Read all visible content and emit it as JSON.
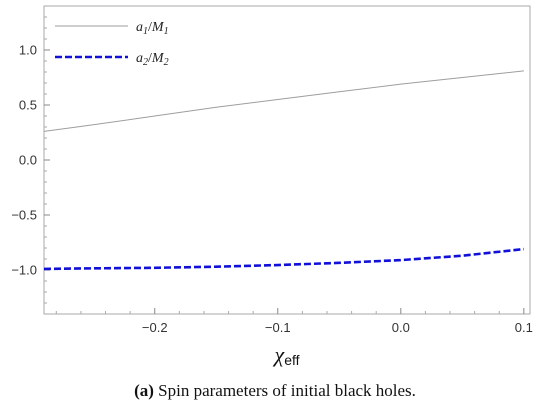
{
  "chart_data": {
    "type": "line",
    "x_axis": {
      "range": [
        -0.29,
        0.105
      ],
      "ticks": [
        -0.2,
        -0.1,
        0.0,
        0.1
      ],
      "tick_labels": [
        "−0.2",
        "−0.1",
        "0.0",
        "0.1"
      ],
      "label_main": "χ",
      "label_sub": "eff"
    },
    "y_axis": {
      "range": [
        -1.4,
        1.4
      ],
      "ticks": [
        -1.0,
        -0.5,
        0.0,
        0.5,
        1.0
      ],
      "tick_labels": [
        "−1.0",
        "−0.5",
        "0.0",
        "0.5",
        "1.0"
      ]
    },
    "grid": false,
    "legend_position": "top-left",
    "series": [
      {
        "legend_base1": "a",
        "legend_sub1": "1",
        "legend_sep": "/",
        "legend_base2": "M",
        "legend_sub2": "1",
        "color": "#9e9e9e",
        "style": "solid",
        "x": [
          -0.29,
          -0.25,
          -0.2,
          -0.15,
          -0.1,
          -0.05,
          0.0,
          0.05,
          0.1
        ],
        "y": [
          0.26,
          0.32,
          0.4,
          0.48,
          0.55,
          0.62,
          0.69,
          0.75,
          0.81
        ]
      },
      {
        "legend_base1": "a",
        "legend_sub1": "2",
        "legend_sep": "/",
        "legend_base2": "M",
        "legend_sub2": "2",
        "color": "#1010d8",
        "style": "dashed",
        "x": [
          -0.29,
          -0.25,
          -0.2,
          -0.15,
          -0.1,
          -0.05,
          0.0,
          0.05,
          0.1
        ],
        "y": [
          -0.99,
          -0.985,
          -0.98,
          -0.97,
          -0.955,
          -0.935,
          -0.91,
          -0.87,
          -0.81
        ]
      }
    ]
  },
  "caption": {
    "tag": "(a)",
    "text": " Spin parameters of initial black holes."
  }
}
